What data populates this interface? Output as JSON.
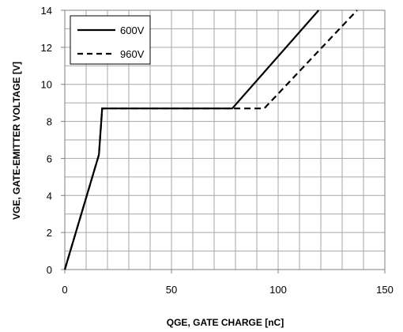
{
  "chart_data": {
    "type": "line",
    "xlabel": "QGE, GATE CHARGE [nC]",
    "ylabel": "VGE, GATE-EMITTER VOLTAGE [V]",
    "xlim": [
      0,
      150
    ],
    "ylim": [
      0,
      14
    ],
    "x_ticks": [
      "0",
      "50",
      "100",
      "150"
    ],
    "y_ticks": [
      "0",
      "2",
      "4",
      "6",
      "8",
      "10",
      "12",
      "14"
    ],
    "x_minor_grid_step": 10,
    "y_minor_grid_step": 1,
    "grid": true,
    "legend_position": "top-left",
    "series": [
      {
        "name": "600V",
        "style": "solid",
        "color": "#000000",
        "points": [
          [
            0,
            0
          ],
          [
            16,
            6.2
          ],
          [
            17.5,
            8.7
          ],
          [
            78.5,
            8.7
          ],
          [
            119,
            14
          ]
        ]
      },
      {
        "name": "960V",
        "style": "dashed",
        "color": "#000000",
        "points": [
          [
            0,
            0
          ],
          [
            16,
            6.2
          ],
          [
            17.5,
            8.7
          ],
          [
            93.5,
            8.7
          ],
          [
            137,
            14
          ]
        ]
      }
    ]
  }
}
